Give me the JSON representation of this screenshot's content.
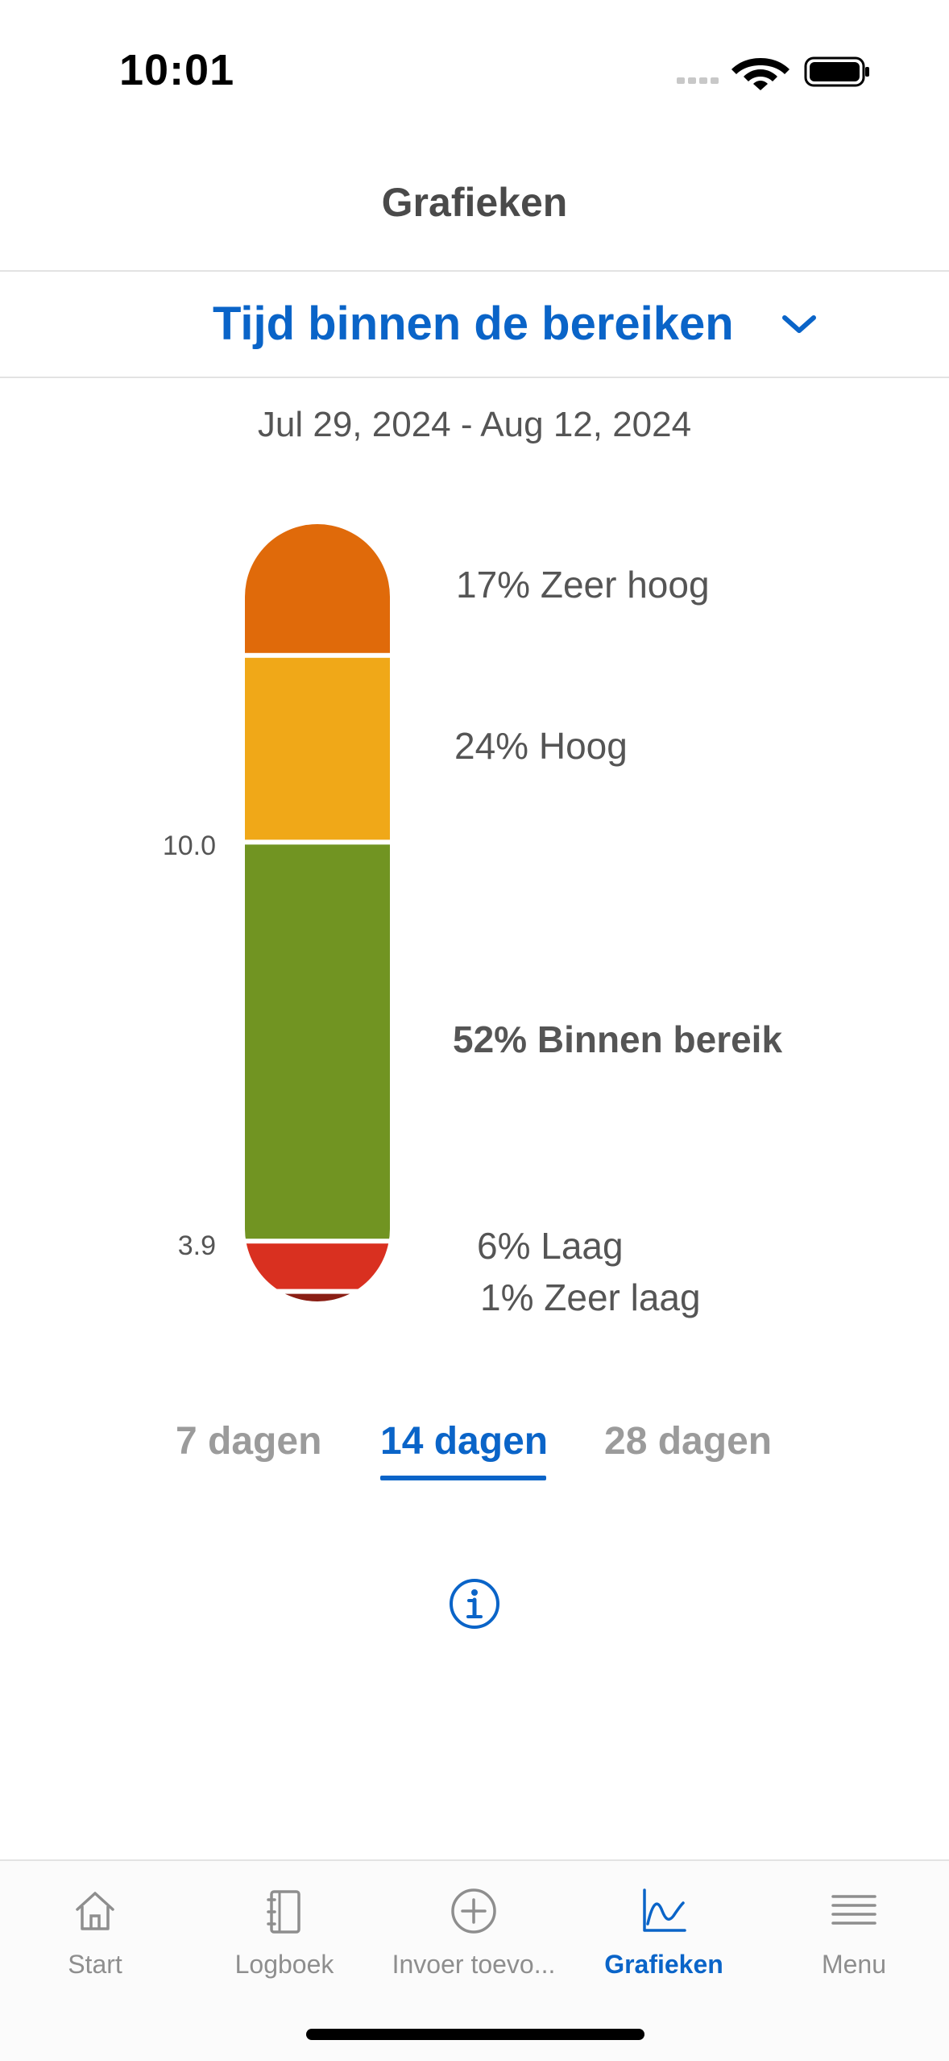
{
  "status_bar": {
    "time": "10:01"
  },
  "header": {
    "title": "Grafieken"
  },
  "selector": {
    "label": "Tijd binnen de bereiken"
  },
  "date_range": "Jul 29, 2024 - Aug 12, 2024",
  "chart_data": {
    "type": "bar",
    "stacked": true,
    "categories": [
      "Zeer hoog",
      "Hoog",
      "Binnen bereik",
      "Laag",
      "Zeer laag"
    ],
    "values": [
      17,
      24,
      52,
      6,
      1
    ],
    "unit": "%",
    "labels": [
      "17% Zeer hoog",
      "24% Hoog",
      "52% Binnen bereik",
      "6% Laag",
      "1% Zeer laag"
    ],
    "thresholds": [
      "10.0",
      "3.9"
    ],
    "colors": [
      "#e06a0a",
      "#f0a818",
      "#719422",
      "#d93020",
      "#8a1e14"
    ]
  },
  "period_tabs": [
    {
      "label": "7 dagen",
      "active": false
    },
    {
      "label": "14 dagen",
      "active": true
    },
    {
      "label": "28 dagen",
      "active": false
    }
  ],
  "info_icon": "info-icon",
  "tab_bar": [
    {
      "label": "Start",
      "icon": "home-icon",
      "active": false
    },
    {
      "label": "Logboek",
      "icon": "logbook-icon",
      "active": false
    },
    {
      "label": "Invoer toevo...",
      "icon": "add-entry-icon",
      "active": false
    },
    {
      "label": "Grafieken",
      "icon": "chart-icon",
      "active": true
    },
    {
      "label": "Menu",
      "icon": "menu-icon",
      "active": false
    }
  ],
  "colors": {
    "accent": "#0a64c8",
    "text": "#4a4a4a",
    "muted": "#9b9b9b"
  }
}
